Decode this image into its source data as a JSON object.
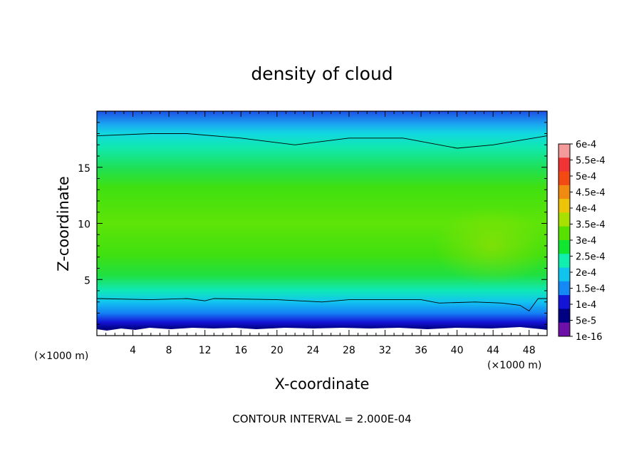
{
  "chart_data": {
    "type": "heatmap",
    "title": "density of cloud",
    "xlabel": "X-coordinate",
    "ylabel": "Z-coordinate",
    "x_unit": "(×1000 m)",
    "z_unit": "(×1000 m)",
    "xlim": [
      0,
      50
    ],
    "ylim": [
      0,
      20
    ],
    "x_ticks": [
      "4",
      "8",
      "12",
      "16",
      "20",
      "24",
      "28",
      "32",
      "36",
      "40",
      "44",
      "48"
    ],
    "y_ticks": [
      "5",
      "10",
      "15"
    ],
    "footer": "CONTOUR INTERVAL = 2.000E-04",
    "colorbar": {
      "levels": [
        "6e-4",
        "5.5e-4",
        "5e-4",
        "4.5e-4",
        "4e-4",
        "3.5e-4",
        "3e-4",
        "2.5e-4",
        "2e-4",
        "1.5e-4",
        "1e-4",
        "5e-5",
        "1e-16"
      ],
      "colors": [
        "#f49a9a",
        "#f03434",
        "#f24a12",
        "#f08a10",
        "#ecc408",
        "#a8e000",
        "#58e000",
        "#10e630",
        "#10eeb0",
        "#10c4ee",
        "#1488f4",
        "#1414d8",
        "#000080",
        "#6e10a8"
      ]
    },
    "contour_lines": [
      {
        "level": "2e-4",
        "points": [
          [
            0,
            17.8
          ],
          [
            6,
            18.0
          ],
          [
            10,
            18.0
          ],
          [
            16,
            17.6
          ],
          [
            22,
            17.0
          ],
          [
            28,
            17.6
          ],
          [
            34,
            17.6
          ],
          [
            40,
            16.7
          ],
          [
            44,
            17.0
          ],
          [
            50,
            17.8
          ]
        ]
      },
      {
        "level": "2e-4",
        "points": [
          [
            0,
            3.3
          ],
          [
            6,
            3.2
          ],
          [
            10,
            3.3
          ],
          [
            12,
            3.1
          ],
          [
            13,
            3.3
          ],
          [
            20,
            3.2
          ],
          [
            25,
            3.0
          ],
          [
            28,
            3.2
          ],
          [
            36,
            3.2
          ],
          [
            38,
            2.9
          ],
          [
            42,
            3.0
          ],
          [
            45,
            2.9
          ],
          [
            47,
            2.7
          ],
          [
            48,
            2.2
          ],
          [
            49,
            3.3
          ],
          [
            50,
            3.3
          ]
        ]
      }
    ]
  }
}
